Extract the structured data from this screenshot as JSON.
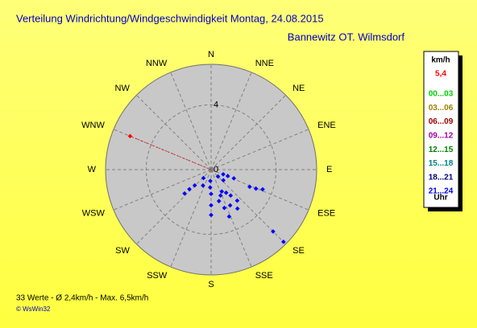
{
  "chart_data": {
    "type": "polar_scatter",
    "title": "Verteilung Windrichtung/Windgeschwindigkeit  Montag, 24.08.2015",
    "subtitle": "Bannewitz OT. Wilmsdorf",
    "directions": [
      "N",
      "NNE",
      "NE",
      "ENE",
      "E",
      "ESE",
      "SE",
      "SSE",
      "S",
      "SSW",
      "SW",
      "WSW",
      "W",
      "WNW",
      "NW",
      "NNW"
    ],
    "rlim": [
      0,
      6.5
    ],
    "rticks": [
      0,
      4
    ],
    "grid": true,
    "current": {
      "theta": 292.5,
      "r": 5.4,
      "r_label": "5,4",
      "color": "#ff0000"
    },
    "series": [
      {
        "color": "#0000ff",
        "theta": [
          111,
          111,
          135,
          111,
          131,
          114,
          113,
          111,
          222,
          226,
          228,
          228,
          184,
          183,
          207,
          180,
          154,
          160,
          147,
          143,
          140,
          166,
          180,
          152,
          146,
          161,
          159,
          180,
          135,
          135
        ],
        "r": [
          0.8,
          1.1,
          0.6,
          1.5,
          1.0,
          2.6,
          3.0,
          3.4,
          0.7,
          1.4,
          1.8,
          2.2,
          0.7,
          1.1,
          1.1,
          1.5,
          1.5,
          1.7,
          1.7,
          2.0,
          2.5,
          2.0,
          2.2,
          2.5,
          2.9,
          2.5,
          3.1,
          2.8,
          5.4,
          6.3
        ]
      }
    ],
    "legend": {
      "title": "km/h",
      "items": [
        {
          "label": "00...03",
          "color": "#00d000"
        },
        {
          "label": "03...06",
          "color": "#a08000"
        },
        {
          "label": "06...09",
          "color": "#a00000"
        },
        {
          "label": "09...12",
          "color": "#a000a0"
        },
        {
          "label": "12...15",
          "color": "#008000"
        },
        {
          "label": "15...18",
          "color": "#008080"
        },
        {
          "label": "18...21",
          "color": "#000080"
        },
        {
          "label": "21...24",
          "color": "#0000ff"
        }
      ],
      "footer": "Uhr"
    },
    "stats": "33 Werte   -   Ø 2,4km/h   -   Max. 6,5km/h",
    "copyright": "© WsWin32"
  }
}
